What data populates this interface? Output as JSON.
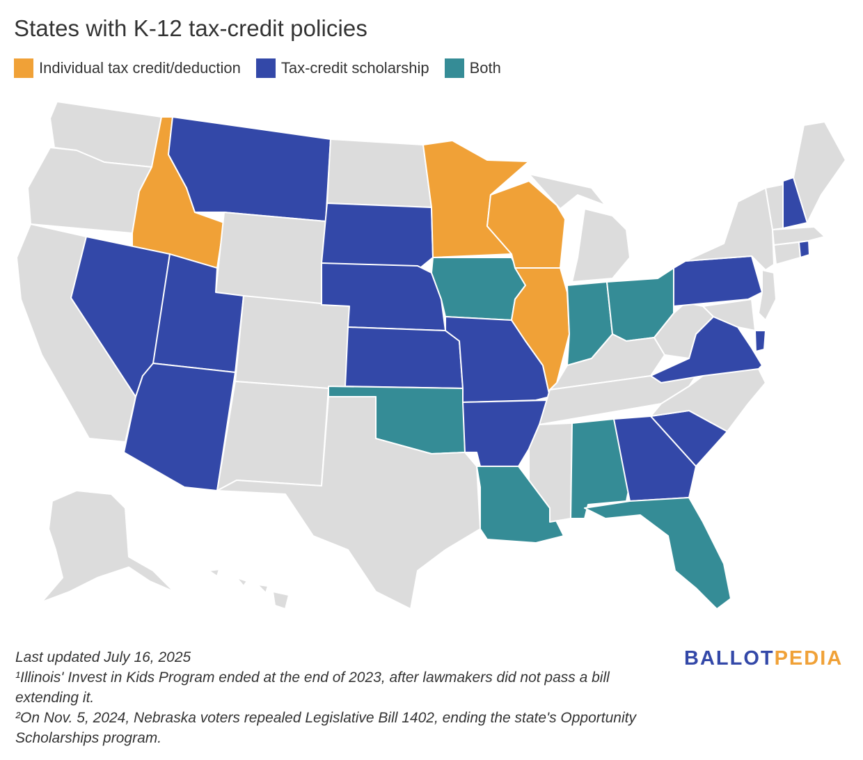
{
  "title": "States with K-12 tax-credit policies",
  "legend": [
    {
      "label": "Individual tax credit/deduction",
      "color": "#f0a137",
      "category": "individual"
    },
    {
      "label": "Tax-credit scholarship",
      "color": "#3348a8",
      "category": "scholarship"
    },
    {
      "label": "Both",
      "color": "#358c96",
      "category": "both"
    }
  ],
  "no_policy_color": "#dcdcdc",
  "states": {
    "ID": "individual",
    "MN": "individual",
    "WI": "individual",
    "IL": "individual",
    "MT": "scholarship",
    "SD": "scholarship",
    "NE": "scholarship",
    "KS": "scholarship",
    "MO": "scholarship",
    "AR": "scholarship",
    "NV": "scholarship",
    "UT": "scholarship",
    "AZ": "scholarship",
    "GA": "scholarship",
    "SC": "scholarship",
    "VA": "scholarship",
    "PA": "scholarship",
    "NH": "scholarship",
    "RI": "scholarship",
    "DE": "scholarship",
    "IA": "both",
    "IN": "both",
    "OH": "both",
    "OK": "both",
    "LA": "both",
    "AL": "both",
    "FL": "both",
    "WA": "none",
    "OR": "none",
    "CA": "none",
    "WY": "none",
    "CO": "none",
    "NM": "none",
    "TX": "none",
    "ND": "none",
    "MI": "none",
    "KY": "none",
    "TN": "none",
    "MS": "none",
    "WV": "none",
    "NC": "none",
    "NY": "none",
    "VT": "none",
    "ME": "none",
    "MA": "none",
    "CT": "none",
    "NJ": "none",
    "MD": "none",
    "AK": "none",
    "HI": "none"
  },
  "footer": {
    "updated": "Last updated July 16, 2025",
    "note1": "¹Illinois' Invest in Kids Program ended at the end of 2023, after lawmakers did not pass a bill extending it.",
    "note2": "²On Nov. 5, 2024, Nebraska voters repealed Legislative Bill 1402, ending the state's Opportunity Scholarships program."
  },
  "logo": {
    "part1": "BALLOT",
    "part2": "PEDIA"
  }
}
